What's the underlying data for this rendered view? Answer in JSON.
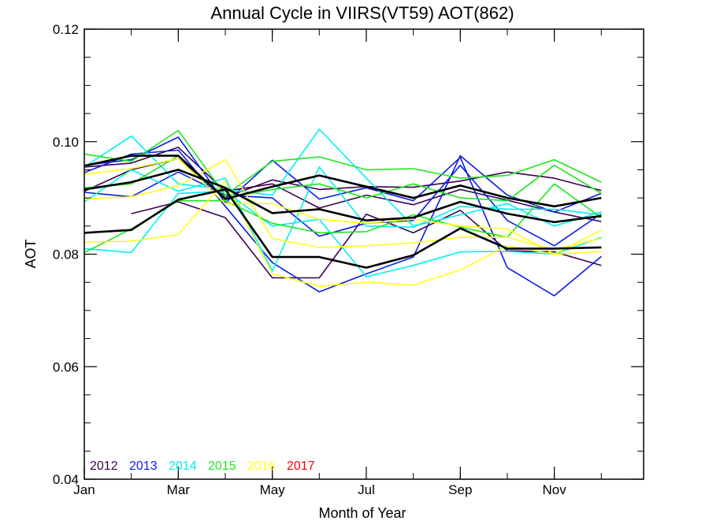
{
  "chart_data": {
    "type": "line",
    "title": "Annual Cycle in VIIRS(VT59) AOT(862)",
    "xlabel": "Month of Year",
    "ylabel": "AOT",
    "xlim": [
      1,
      12.9
    ],
    "ylim": [
      0.04,
      0.12
    ],
    "x_ticks": [
      {
        "value": 1,
        "label": "Jan"
      },
      {
        "value": 3,
        "label": "Mar"
      },
      {
        "value": 5,
        "label": "May"
      },
      {
        "value": 7,
        "label": "Jul"
      },
      {
        "value": 9,
        "label": "Sep"
      },
      {
        "value": 11,
        "label": "Nov"
      }
    ],
    "y_ticks": [
      {
        "value": 0.04,
        "label": "0.04"
      },
      {
        "value": 0.06,
        "label": "0.06"
      },
      {
        "value": 0.08,
        "label": "0.08"
      },
      {
        "value": 0.1,
        "label": "0.10"
      },
      {
        "value": 0.12,
        "label": "0.12"
      }
    ],
    "legend": {
      "placement": "bottom-left",
      "entries": [
        {
          "label": "2012",
          "color": "#3b0050"
        },
        {
          "label": "2013",
          "color": "#0a1ee6"
        },
        {
          "label": "2014",
          "color": "#00f0f0"
        },
        {
          "label": "2015",
          "color": "#1ee61e"
        },
        {
          "label": "2016",
          "color": "#ffff1a"
        },
        {
          "label": "2017",
          "color": "#ff0000"
        }
      ]
    },
    "series": [
      {
        "color": "#3b0050",
        "x": [
          2,
          3,
          4,
          5,
          6,
          7,
          8,
          9,
          10,
          11,
          12
        ],
        "y": [
          0.0872,
          0.0893,
          0.0865,
          0.0758,
          0.0758,
          0.0871,
          0.0838,
          0.0878,
          0.0806,
          0.0804,
          0.078
        ]
      },
      {
        "color": "#3b0050",
        "x": [
          1,
          2,
          3,
          4,
          5,
          6,
          7,
          8,
          9,
          10,
          11,
          12
        ],
        "y": [
          0.0955,
          0.0962,
          0.099,
          0.0912,
          0.0925,
          0.0882,
          0.0905,
          0.0888,
          0.0915,
          0.0896,
          0.0875,
          0.0858
        ]
      },
      {
        "color": "#3b0050",
        "x": [
          1,
          2,
          3,
          4,
          5,
          6,
          7,
          8,
          9,
          10,
          11,
          12
        ],
        "y": [
          0.0912,
          0.095,
          0.097,
          0.0901,
          0.0932,
          0.0915,
          0.092,
          0.0919,
          0.093,
          0.0946,
          0.0935,
          0.0913
        ]
      },
      {
        "color": "#0a1ee6",
        "x": [
          1,
          2,
          3,
          4,
          5,
          6,
          7,
          8,
          9,
          10,
          11,
          12
        ],
        "y": [
          0.0958,
          0.0968,
          0.1008,
          0.0891,
          0.0967,
          0.0898,
          0.0918,
          0.0895,
          0.0972,
          0.0776,
          0.0726,
          0.0796
        ]
      },
      {
        "color": "#0a1ee6",
        "x": [
          1,
          2,
          3,
          4,
          5,
          6,
          7,
          8,
          9,
          10,
          11,
          12
        ],
        "y": [
          0.0945,
          0.0978,
          0.0985,
          0.0885,
          0.0785,
          0.0733,
          0.0765,
          0.0795,
          0.0975,
          0.0905,
          0.0875,
          0.0908
        ]
      },
      {
        "color": "#0a1ee6",
        "x": [
          1,
          2,
          3,
          4,
          5,
          6,
          7,
          8,
          9,
          10,
          11,
          12
        ],
        "y": [
          0.091,
          0.0902,
          0.0946,
          0.0905,
          0.09,
          0.0832,
          0.0855,
          0.086,
          0.0958,
          0.086,
          0.0815,
          0.0872
        ]
      },
      {
        "color": "#00f0f0",
        "x": [
          1,
          2,
          3,
          4,
          5,
          6,
          7,
          8,
          9,
          10,
          11,
          12
        ],
        "y": [
          0.0955,
          0.101,
          0.0925,
          0.0915,
          0.0905,
          0.1022,
          0.0935,
          0.085,
          0.087,
          0.089,
          0.085,
          0.0875
        ]
      },
      {
        "color": "#00f0f0",
        "x": [
          1,
          2,
          3,
          4,
          5,
          6,
          7,
          8,
          9,
          10,
          11,
          12
        ],
        "y": [
          0.0893,
          0.095,
          0.0912,
          0.0935,
          0.077,
          0.0955,
          0.085,
          0.0848,
          0.0885,
          0.088,
          0.088,
          0.087
        ]
      },
      {
        "color": "#00f0f0",
        "x": [
          1,
          2,
          3,
          4,
          5,
          6,
          7,
          8,
          9,
          10,
          11,
          12
        ],
        "y": [
          0.081,
          0.0803,
          0.0908,
          0.0912,
          0.085,
          0.0862,
          0.076,
          0.078,
          0.0804,
          0.0805,
          0.08,
          0.083
        ]
      },
      {
        "color": "#1ee61e",
        "x": [
          1,
          2,
          3,
          4,
          5,
          6,
          7,
          8,
          9,
          10,
          11,
          12
        ],
        "y": [
          0.0978,
          0.0965,
          0.102,
          0.0905,
          0.0965,
          0.0973,
          0.095,
          0.0952,
          0.0935,
          0.094,
          0.0968,
          0.0928
        ]
      },
      {
        "color": "#1ee61e",
        "x": [
          1,
          2,
          3,
          4,
          5,
          6,
          7,
          8,
          9,
          10,
          11,
          12
        ],
        "y": [
          0.0918,
          0.0925,
          0.0975,
          0.09,
          0.0915,
          0.0925,
          0.09,
          0.0925,
          0.09,
          0.0895,
          0.0958,
          0.0908
        ]
      },
      {
        "color": "#1ee61e",
        "x": [
          1,
          2,
          3,
          4,
          5,
          6,
          7,
          8,
          9,
          10,
          11,
          12
        ],
        "y": [
          0.0803,
          0.0845,
          0.0895,
          0.0895,
          0.0855,
          0.0838,
          0.084,
          0.087,
          0.0848,
          0.083,
          0.0925,
          0.0865
        ]
      },
      {
        "color": "#ffff1a",
        "x": [
          1,
          2,
          3,
          4,
          5,
          6,
          7,
          8,
          9,
          10,
          11,
          12
        ],
        "y": [
          0.0942,
          0.0952,
          0.097,
          0.089,
          0.089,
          0.0862,
          0.0855,
          0.0862,
          0.085,
          0.0845,
          0.08,
          0.0843
        ]
      },
      {
        "color": "#ffff1a",
        "x": [
          1,
          2,
          3,
          4,
          5,
          6,
          7,
          8,
          9,
          10,
          11,
          12
        ],
        "y": [
          0.0898,
          0.0902,
          0.0922,
          0.0968,
          0.0828,
          0.0812,
          0.0815,
          0.082,
          0.083,
          0.083,
          0.0808,
          0.0828
        ]
      },
      {
        "color": "#ffff1a",
        "x": [
          1,
          2,
          3,
          4,
          5,
          6,
          7,
          8,
          9,
          10,
          11,
          12
        ],
        "y": [
          0.0822,
          0.0823,
          0.0835,
          0.093,
          0.0765,
          0.0743,
          0.075,
          0.0745,
          0.0772,
          0.0815,
          0.08,
          0.0805
        ]
      },
      {
        "color": "#000000",
        "x": [
          1,
          2,
          3,
          4,
          5,
          6,
          7,
          8,
          9,
          10,
          11,
          12
        ],
        "y": [
          0.0957,
          0.0975,
          0.0975,
          0.0898,
          0.092,
          0.094,
          0.092,
          0.09,
          0.0922,
          0.09,
          0.0885,
          0.09
        ]
      },
      {
        "color": "#000000",
        "x": [
          1,
          2,
          3,
          4,
          5,
          6,
          7,
          8,
          9,
          10,
          11,
          12
        ],
        "y": [
          0.0915,
          0.0928,
          0.095,
          0.0918,
          0.0873,
          0.088,
          0.086,
          0.0865,
          0.0893,
          0.0872,
          0.0857,
          0.0868
        ]
      },
      {
        "color": "#000000",
        "x": [
          1,
          2,
          3,
          4,
          5,
          6,
          7,
          8,
          9,
          10,
          11,
          12
        ],
        "y": [
          0.0838,
          0.0843,
          0.0897,
          0.0915,
          0.0795,
          0.0795,
          0.0776,
          0.0798,
          0.0846,
          0.081,
          0.081,
          0.0812
        ]
      }
    ]
  }
}
